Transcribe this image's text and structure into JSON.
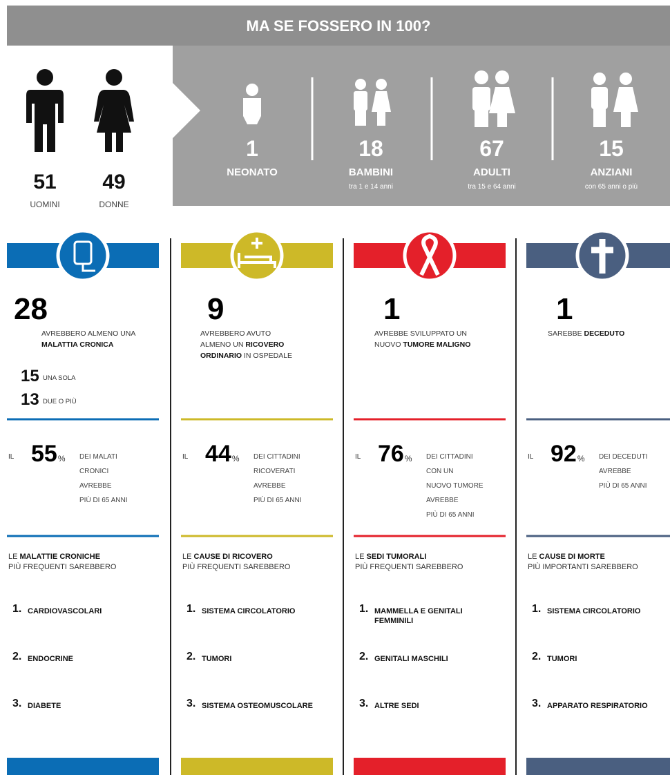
{
  "header": {
    "title": "MA SE FOSSERO IN 100?"
  },
  "gender": [
    {
      "value": 51,
      "label": "UOMINI"
    },
    {
      "value": 49,
      "label": "DONNE"
    }
  ],
  "ages": [
    {
      "value": 1,
      "label": "NEONATO"
    },
    {
      "value": 18,
      "label": "BAMBINI",
      "note": "tra 1 e 14 anni"
    },
    {
      "value": 67,
      "label": "ADULTI",
      "note": "tra 15 e 64 anni"
    },
    {
      "value": 15,
      "label": "ANZIANI",
      "note": "con 65 anni o più"
    }
  ],
  "columns": [
    {
      "color": "#0b6db5",
      "value": 28,
      "lines": [
        [
          {
            "text": "AVREBBERO ALMENO UNA"
          }
        ],
        [
          {
            "text": "MALATTIA CRONICA",
            "bold": true
          }
        ]
      ],
      "sub": [
        {
          "value": 15,
          "label": "UNA SOLA"
        },
        {
          "value": 13,
          "label": "DUE O PIÙ"
        }
      ],
      "pct": {
        "prefix": "IL",
        "value": 55,
        "unit": "%",
        "lines": [
          "DEI MALATI",
          "CRONICI",
          "AVREBBE",
          "PIÙ DI 65 ANNI"
        ]
      },
      "list": {
        "heading": [
          [
            {
              "text": "LE "
            },
            {
              "text": "MALATTIE CRONICHE",
              "bold": true
            }
          ],
          [
            {
              "text": "PIÙ FREQUENTI SAREBBERO"
            }
          ]
        ],
        "items": [
          {
            "rank": "1.",
            "lines": [
              "CARDIOVASCOLARI"
            ]
          },
          {
            "rank": "2.",
            "lines": [
              "ENDOCRINE"
            ]
          },
          {
            "rank": "3.",
            "lines": [
              "DIABETE"
            ]
          }
        ]
      }
    },
    {
      "color": "#cdb928",
      "value": 9,
      "lines": [
        [
          {
            "text": "AVREBBERO AVUTO"
          }
        ],
        [
          {
            "text": "ALMENO UN "
          },
          {
            "text": "RICOVERO",
            "bold": true
          }
        ],
        [
          {
            "text": "ORDINARIO",
            "bold": true
          },
          {
            "text": " IN OSPEDALE"
          }
        ]
      ],
      "pct": {
        "prefix": "IL",
        "value": 44,
        "unit": "%",
        "lines": [
          "DEI CITTADINI",
          "RICOVERATI",
          "AVREBBE",
          "PIÙ DI 65 ANNI"
        ]
      },
      "list": {
        "heading": [
          [
            {
              "text": "LE "
            },
            {
              "text": "CAUSE DI RICOVERO",
              "bold": true
            }
          ],
          [
            {
              "text": "PIÙ FREQUENTI SAREBBERO"
            }
          ]
        ],
        "items": [
          {
            "rank": "1.",
            "lines": [
              "SISTEMA CIRCOLATORIO"
            ]
          },
          {
            "rank": "2.",
            "lines": [
              "TUMORI"
            ]
          },
          {
            "rank": "3.",
            "lines": [
              "SISTEMA  OSTEOMUSCOLARE"
            ]
          }
        ]
      }
    },
    {
      "color": "#e4202a",
      "value": 1,
      "lines": [
        [
          {
            "text": "AVREBBE SVILUPPATO UN"
          }
        ],
        [
          {
            "text": "NUOVO "
          },
          {
            "text": "TUMORE MALIGNO",
            "bold": true
          }
        ]
      ],
      "pct": {
        "prefix": "IL",
        "value": 76,
        "unit": "%",
        "lines": [
          "DEI CITTADINI",
          "CON UN",
          "NUOVO TUMORE",
          "AVREBBE",
          "PIÙ DI 65 ANNI"
        ]
      },
      "list": {
        "heading": [
          [
            {
              "text": "LE "
            },
            {
              "text": "SEDI TUMORALI",
              "bold": true
            }
          ],
          [
            {
              "text": "PIÙ FREQUENTI SAREBBERO"
            }
          ]
        ],
        "items": [
          {
            "rank": "1.",
            "lines": [
              "MAMMELLA E GENITALI",
              "FEMMINILI"
            ]
          },
          {
            "rank": "2.",
            "lines": [
              "GENITALI MASCHILI"
            ]
          },
          {
            "rank": "3.",
            "lines": [
              "ALTRE SEDI"
            ]
          }
        ]
      }
    },
    {
      "color": "#4a5f80",
      "value": 1,
      "lines": [
        [
          {
            "text": "SAREBBE "
          },
          {
            "text": "DECEDUTO",
            "bold": true
          }
        ]
      ],
      "pct": {
        "prefix": "IL",
        "value": 92,
        "unit": "%",
        "lines": [
          "DEI DECEDUTI",
          "AVREBBE",
          "PIÙ DI 65 ANNI"
        ]
      },
      "list": {
        "heading": [
          [
            {
              "text": "LE "
            },
            {
              "text": "CAUSE DI MORTE",
              "bold": true
            }
          ],
          [
            {
              "text": "PIÙ IMPORTANTI SAREBBERO"
            }
          ]
        ],
        "items": [
          {
            "rank": "1.",
            "lines": [
              "SISTEMA CIRCOLATORIO"
            ]
          },
          {
            "rank": "2.",
            "lines": [
              "TUMORI"
            ]
          },
          {
            "rank": "3.",
            "lines": [
              "APPARATO RESPIRATORIO"
            ]
          }
        ]
      }
    }
  ]
}
